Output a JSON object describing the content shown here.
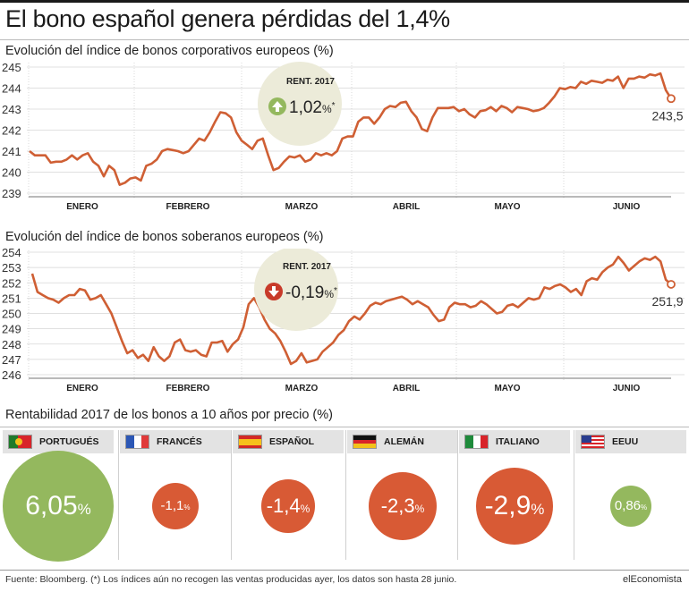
{
  "title": "El bono español genera pérdidas del 1,4%",
  "colors": {
    "line": "#cf5f34",
    "positive": "#94b85e",
    "negative": "#d85a35",
    "badge": "#ecebd9"
  },
  "bars_title": "Rentabilidad 2017 de los bonos a 10 años por precio (%)",
  "footer": {
    "source": "Fuente: Bloomberg. (*) Los índices aún no recogen las ventas producidas ayer, los datos son hasta 28 junio.",
    "brand": "elEconomista"
  },
  "chart_data": [
    {
      "type": "line",
      "title": "Evolución del índice de bonos corporativos europeos (%)",
      "ylim": [
        239,
        245
      ],
      "yticks": [
        "239",
        "240",
        "241",
        "242",
        "243",
        "244",
        "245"
      ],
      "month_labels": [
        "ENERO",
        "FEBRERO",
        "MARZO",
        "ABRIL",
        "MAYO",
        "JUNIO"
      ],
      "last_value_label": "243,5",
      "badge": {
        "label": "RENT. 2017",
        "value": "1,02",
        "suffix": "%",
        "asterisk": "*",
        "direction": "up"
      },
      "values": [
        241.0,
        240.8,
        240.8,
        240.8,
        240.45,
        240.5,
        240.5,
        240.6,
        240.8,
        240.6,
        240.8,
        240.9,
        240.5,
        240.3,
        239.8,
        240.3,
        240.1,
        239.4,
        239.5,
        239.7,
        239.75,
        239.6,
        240.3,
        240.4,
        240.6,
        241.0,
        241.1,
        241.05,
        241.0,
        240.9,
        241.0,
        241.3,
        241.6,
        241.5,
        241.9,
        242.4,
        242.85,
        242.8,
        242.6,
        241.9,
        241.5,
        241.3,
        241.1,
        241.5,
        241.6,
        240.8,
        240.1,
        240.2,
        240.5,
        240.75,
        240.7,
        240.8,
        240.5,
        240.6,
        240.9,
        240.8,
        240.9,
        240.8,
        241.0,
        241.6,
        241.7,
        241.7,
        242.4,
        242.6,
        242.6,
        242.3,
        242.6,
        243.0,
        243.15,
        243.1,
        243.3,
        243.35,
        242.9,
        242.6,
        242.05,
        241.95,
        242.6,
        243.05,
        243.05,
        243.05,
        243.1,
        242.9,
        243.0,
        242.75,
        242.6,
        242.9,
        242.95,
        243.1,
        242.9,
        243.15,
        243.05,
        242.85,
        243.1,
        243.05,
        243.0,
        242.9,
        242.95,
        243.05,
        243.3,
        243.6,
        244.0,
        243.95,
        244.05,
        244.0,
        244.3,
        244.2,
        244.35,
        244.3,
        244.25,
        244.4,
        244.35,
        244.55,
        244.0,
        244.45,
        244.45,
        244.55,
        244.5,
        244.65,
        244.6,
        244.7,
        243.9,
        243.5
      ]
    },
    {
      "type": "line",
      "title": "Evolución del índice de bonos soberanos europeos (%)",
      "ylim": [
        246,
        254
      ],
      "yticks": [
        "246",
        "247",
        "248",
        "249",
        "250",
        "251",
        "252",
        "253",
        "254"
      ],
      "month_labels": [
        "ENERO",
        "FEBRERO",
        "MARZO",
        "ABRIL",
        "MAYO",
        "JUNIO"
      ],
      "last_value_label": "251,9",
      "badge": {
        "label": "RENT. 2017",
        "value": "-0,19",
        "suffix": "%",
        "asterisk": "*",
        "direction": "down"
      },
      "values": [
        252.6,
        251.4,
        251.2,
        251.0,
        250.9,
        250.7,
        251.0,
        251.2,
        251.2,
        251.6,
        251.5,
        250.9,
        251.0,
        251.2,
        250.6,
        250.0,
        249.1,
        248.2,
        247.4,
        247.6,
        247.1,
        247.3,
        246.9,
        247.8,
        247.2,
        246.9,
        247.2,
        248.1,
        248.3,
        247.6,
        247.5,
        247.6,
        247.3,
        247.2,
        248.1,
        248.1,
        248.2,
        247.5,
        248.0,
        248.3,
        249.1,
        250.6,
        251.0,
        250.4,
        249.6,
        249.0,
        248.7,
        248.2,
        247.5,
        246.7,
        246.9,
        247.4,
        246.8,
        246.9,
        247.0,
        247.5,
        247.8,
        248.1,
        248.6,
        248.9,
        249.5,
        249.8,
        249.6,
        250.0,
        250.5,
        250.7,
        250.6,
        250.8,
        250.9,
        251.0,
        251.1,
        250.9,
        250.6,
        250.8,
        250.6,
        250.4,
        249.9,
        249.5,
        249.6,
        250.4,
        250.7,
        250.6,
        250.6,
        250.4,
        250.5,
        250.8,
        250.6,
        250.3,
        250.0,
        250.1,
        250.5,
        250.6,
        250.4,
        250.7,
        251.0,
        250.9,
        251.0,
        251.7,
        251.6,
        251.8,
        251.9,
        251.7,
        251.4,
        251.6,
        251.2,
        252.1,
        252.3,
        252.2,
        252.7,
        253.0,
        253.2,
        253.7,
        253.3,
        252.8,
        253.1,
        253.4,
        253.6,
        253.5,
        253.7,
        253.4,
        252.2,
        251.9
      ]
    },
    {
      "type": "bubble",
      "title": "Rentabilidad 2017 de los bonos a 10 años por precio (%)",
      "categories": [
        "PORTUGUÉS",
        "FRANCÉS",
        "ESPAÑOL",
        "ALEMÁN",
        "ITALIANO",
        "EEUU"
      ],
      "flags": [
        "portugal",
        "france",
        "spain",
        "germany",
        "italy",
        "usa"
      ],
      "values": [
        6.05,
        -1.1,
        -1.4,
        -2.3,
        -2.9,
        0.86
      ],
      "value_labels": [
        "6,05",
        "-1,1",
        "-1,4",
        "-2,3",
        "-2,9",
        "0,86"
      ],
      "unit": "%"
    }
  ]
}
